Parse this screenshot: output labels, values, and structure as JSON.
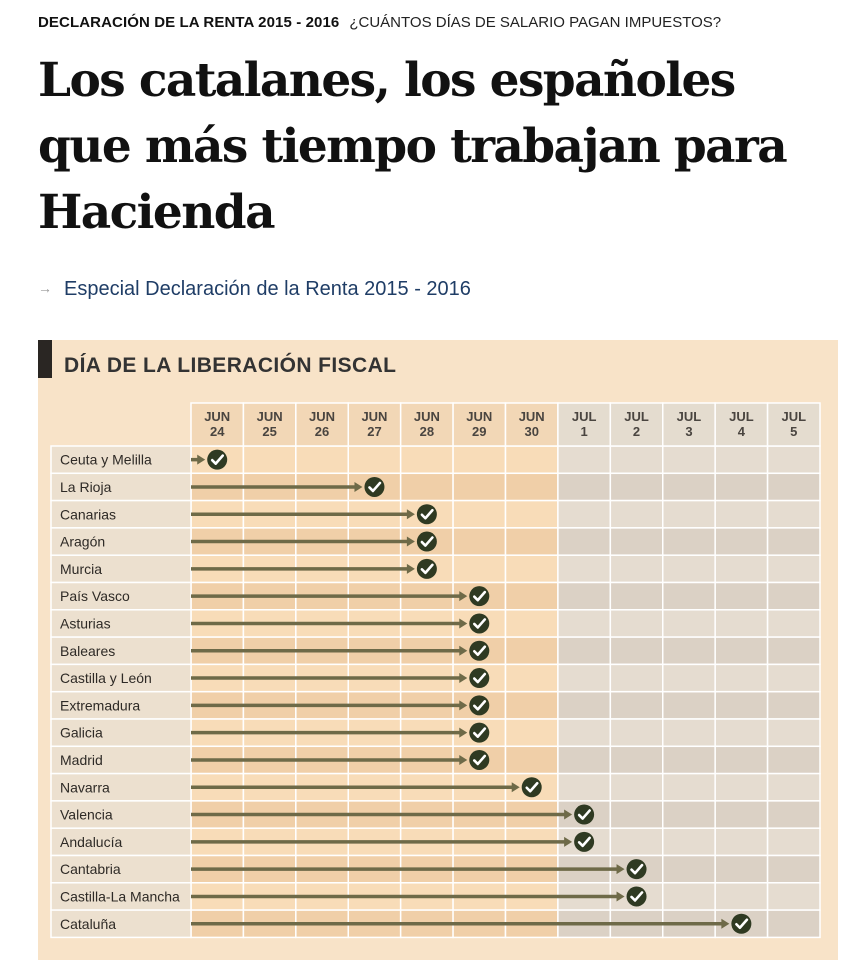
{
  "article": {
    "section": "DECLARACIÓN DE LA RENTA 2015 - 2016",
    "question": "¿CUÁNTOS DÍAS DE SALARIO PAGAN IMPUESTOS?",
    "headline": "Los catalanes, los españoles que más tiempo trabajan para Hacienda",
    "special_link_arrow": "→",
    "special_link": "Especial Declaración de la Renta 2015 - 2016"
  },
  "chart_data": {
    "type": "table",
    "title": "DÍA DE LA LIBERACIÓN FISCAL",
    "columns": [
      {
        "month": "JUN",
        "day": "24"
      },
      {
        "month": "JUN",
        "day": "25"
      },
      {
        "month": "JUN",
        "day": "26"
      },
      {
        "month": "JUN",
        "day": "27"
      },
      {
        "month": "JUN",
        "day": "28"
      },
      {
        "month": "JUN",
        "day": "29"
      },
      {
        "month": "JUN",
        "day": "30"
      },
      {
        "month": "JUL",
        "day": "1"
      },
      {
        "month": "JUL",
        "day": "2"
      },
      {
        "month": "JUL",
        "day": "3"
      },
      {
        "month": "JUL",
        "day": "4"
      },
      {
        "month": "JUL",
        "day": "5"
      }
    ],
    "rows": [
      {
        "region": "Ceuta y Melilla",
        "date_index": 0
      },
      {
        "region": "La Rioja",
        "date_index": 3
      },
      {
        "region": "Canarias",
        "date_index": 4
      },
      {
        "region": "Aragón",
        "date_index": 4
      },
      {
        "region": "Murcia",
        "date_index": 4
      },
      {
        "region": "País Vasco",
        "date_index": 5
      },
      {
        "region": "Asturias",
        "date_index": 5
      },
      {
        "region": "Baleares",
        "date_index": 5
      },
      {
        "region": "Castilla y León",
        "date_index": 5
      },
      {
        "region": "Extremadura",
        "date_index": 5
      },
      {
        "region": "Galicia",
        "date_index": 5
      },
      {
        "region": "Madrid",
        "date_index": 5
      },
      {
        "region": "Navarra",
        "date_index": 6
      },
      {
        "region": "Valencia",
        "date_index": 7
      },
      {
        "region": "Andalucía",
        "date_index": 7
      },
      {
        "region": "Cantabria",
        "date_index": 8
      },
      {
        "region": "Castilla-La Mancha",
        "date_index": 8
      },
      {
        "region": "Cataluña",
        "date_index": 10
      }
    ],
    "colors": {
      "background": "#f8e3c8",
      "june_cell_light": "#f8dcb8",
      "june_cell_dark": "#f0cfa8",
      "july_cell_light": "#e5dcd0",
      "july_cell_dark": "#dbd1c5",
      "header_june": "#f2d7b6",
      "header_july": "#e4dccf",
      "label_cell": "#ece0cf",
      "grid_line": "#ffffff",
      "arrow": "#6e6a48",
      "check": "#2f3a22"
    }
  }
}
